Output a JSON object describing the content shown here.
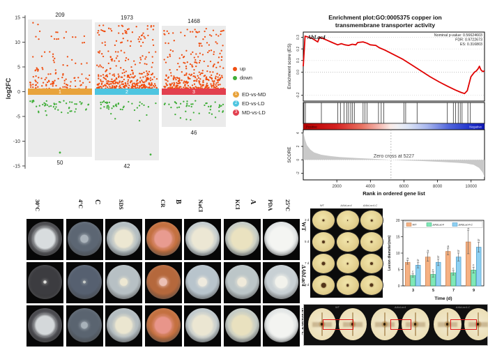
{
  "chart_data": [
    {
      "type": "scatter",
      "ylabel": "log2FC",
      "ylim": [
        -15,
        15
      ],
      "yticks": [
        15,
        10,
        5,
        0,
        -5,
        -10,
        -15
      ],
      "colors": {
        "up": "#f04e11",
        "down": "#3fae38",
        "panel_bg": "#ebebeb"
      },
      "groups": [
        {
          "comparison": "ED-vs-MD",
          "band_num": "1",
          "band_color": "#e8a33c",
          "up": 209,
          "down": 50,
          "outlier": -12.3
        },
        {
          "comparison": "ED-vs-LD",
          "band_num": "2",
          "band_color": "#4ec5e0",
          "up": 1973,
          "down": 42,
          "outlier": -12.7
        },
        {
          "comparison": "MD-vs-LD",
          "band_num": "3",
          "band_color": "#e2404f",
          "up": 1468,
          "down": 46,
          "outlier": null
        }
      ],
      "legend": {
        "up": "up",
        "down": "down",
        "comparisons": [
          {
            "label": "ED-vs-MD",
            "num": "1",
            "color": "#e8a33c"
          },
          {
            "label": "ED-vs-LD",
            "num": "2",
            "color": "#4ec5e0"
          },
          {
            "label": "MD-vs-LD",
            "num": "3",
            "color": "#e2404f"
          }
        ]
      }
    },
    {
      "type": "line",
      "title_line1": "Enrichment plot:GO:0005375 copper ion",
      "title_line2": "transmembrane transporter activity",
      "gene_label": "AbLac4",
      "stats": {
        "nominal_p": "Nominal p-value: 0.56624603",
        "fdr": "FDR: 0.9722673",
        "es": "ES: 0.316803"
      },
      "ylabel": "Enrichment score (ES)",
      "es_ticks": [
        0.3,
        0.2,
        0.1,
        0.0,
        -0.2
      ],
      "score_label": "SCORE",
      "score_ticks": [
        4,
        2,
        0,
        -2
      ],
      "zero_cross_label": "Zero cross at 5227",
      "zero_cross_rank": 5227,
      "max_rank": 10800,
      "xlabel": "Rank in ordered gene list",
      "xticks": [
        2000,
        4000,
        6000,
        8000,
        10000
      ],
      "positive_label": "Positive",
      "negative_label": "Negative",
      "curve_color": "#e00000",
      "curve": [
        [
          0,
          0.05
        ],
        [
          0.01,
          0.31
        ],
        [
          0.05,
          0.29
        ],
        [
          0.08,
          0.26
        ],
        [
          0.09,
          0.3
        ],
        [
          0.1,
          0.295
        ],
        [
          0.13,
          0.275
        ],
        [
          0.16,
          0.255
        ],
        [
          0.19,
          0.235
        ],
        [
          0.21,
          0.245
        ],
        [
          0.23,
          0.235
        ],
        [
          0.25,
          0.23
        ],
        [
          0.27,
          0.24
        ],
        [
          0.29,
          0.235
        ],
        [
          0.3,
          0.255
        ],
        [
          0.33,
          0.26
        ],
        [
          0.35,
          0.25
        ],
        [
          0.37,
          0.235
        ],
        [
          0.4,
          0.23
        ],
        [
          0.42,
          0.21
        ],
        [
          0.45,
          0.19
        ],
        [
          0.5,
          0.15
        ],
        [
          0.55,
          0.11
        ],
        [
          0.6,
          0.06
        ],
        [
          0.65,
          0.01
        ],
        [
          0.7,
          -0.04
        ],
        [
          0.75,
          -0.085
        ],
        [
          0.8,
          -0.125
        ],
        [
          0.84,
          -0.155
        ],
        [
          0.87,
          -0.175
        ],
        [
          0.89,
          -0.185
        ],
        [
          0.905,
          -0.16
        ],
        [
          0.915,
          -0.1
        ],
        [
          0.925,
          -0.04
        ],
        [
          0.935,
          -0.02
        ],
        [
          0.945,
          0
        ],
        [
          0.955,
          0.01
        ],
        [
          0.965,
          0.03
        ],
        [
          0.972,
          0.05
        ],
        [
          0.98,
          0.02
        ],
        [
          0.99,
          0.005
        ],
        [
          1,
          0.01
        ]
      ],
      "hits": [
        0.004,
        0.012,
        0.1,
        0.19,
        0.205,
        0.225,
        0.24,
        0.25,
        0.262,
        0.272,
        0.282,
        0.33,
        0.34,
        0.352,
        0.415,
        0.43,
        0.444,
        0.555,
        0.565,
        0.628,
        0.795,
        0.828,
        0.84,
        0.855,
        0.866,
        0.876,
        0.908,
        0.922
      ],
      "rank_metric": [
        [
          0,
          4.2
        ],
        [
          0.01,
          3
        ],
        [
          0.02,
          2.2
        ],
        [
          0.04,
          1.5
        ],
        [
          0.06,
          1.1
        ],
        [
          0.1,
          0.75
        ],
        [
          0.15,
          0.55
        ],
        [
          0.2,
          0.42
        ],
        [
          0.3,
          0.25
        ],
        [
          0.4,
          0.12
        ],
        [
          0.484,
          0
        ],
        [
          0.55,
          -0.08
        ],
        [
          0.65,
          -0.18
        ],
        [
          0.75,
          -0.3
        ],
        [
          0.85,
          -0.45
        ],
        [
          0.9,
          -0.55
        ],
        [
          0.94,
          -0.75
        ],
        [
          0.97,
          -1.2
        ],
        [
          0.99,
          -1.9
        ],
        [
          1,
          -2.6
        ]
      ]
    },
    {
      "type": "bar",
      "categories": [
        "3",
        "5",
        "7",
        "9"
      ],
      "xlabel": "Time (d)",
      "ylabel": "Lesion diameter(mm)",
      "ylim": [
        0,
        20
      ],
      "yticks": [
        0,
        5,
        10,
        15,
        20
      ],
      "series": [
        {
          "name": "WT",
          "values": [
            7.2,
            8.8,
            10.5,
            13.4
          ],
          "errors": [
            0.6,
            1.3,
            1.0,
            3.6
          ],
          "letters": [
            "a",
            "a",
            "a",
            "a"
          ],
          "color": "#f5b183",
          "border": "#c07848"
        },
        {
          "name": "ΔAbLac4",
          "values": [
            3.2,
            3.5,
            4.0,
            4.8
          ],
          "errors": [
            0.5,
            0.8,
            0.7,
            0.9
          ],
          "letters": [
            "c",
            "c",
            "c",
            "c"
          ],
          "color": "#7fe8b7",
          "border": "#30a870"
        },
        {
          "name": "ΔAbLac4-C",
          "values": [
            6.3,
            7.2,
            8.8,
            11.8
          ],
          "errors": [
            0.8,
            1.0,
            1.2,
            1.5
          ],
          "letters": [
            "b",
            "b",
            "b",
            "b"
          ],
          "color": "#8ed0f2",
          "border": "#4090c0"
        }
      ]
    }
  ],
  "stress": {
    "condition_labels": [
      "30°C",
      "4°C",
      "C",
      "SDS",
      "CR",
      "B",
      "NaCl",
      "KCl",
      "A",
      "PDA",
      "25°C"
    ],
    "panel_letter_indices": [
      2,
      5,
      8
    ],
    "row_labels": [
      "WT",
      "ΔAbLac4",
      "ΔAbLac4-C"
    ],
    "dishes": [
      [
        {
          "p": "#46464a",
          "c": "#d8dcde",
          "s": 0.74
        },
        {
          "p": "#5c6673",
          "c": "#aab3bb",
          "s": 0.3
        },
        {
          "p": "#b4bec2",
          "c": "#ece7d2",
          "s": 0.68
        },
        {
          "p": "#c3703f",
          "c": "#e89b90",
          "s": 0.64
        },
        {
          "p": "#c2cbce",
          "c": "#ece7d4",
          "s": 0.8
        },
        {
          "p": "#c5ccc6",
          "c": "#eae2c0",
          "s": 0.8
        },
        {
          "p": "#dde1e2",
          "c": "#f4f5f2",
          "s": 0.9
        }
      ],
      [
        {
          "p": "#3c3c40",
          "c": "#e0e0dc",
          "s": 0.12
        },
        {
          "p": "#566070",
          "c": "#c8ccc8",
          "s": 0.1
        },
        {
          "p": "#b7c0c4",
          "c": "#ece7d2",
          "s": 0.3
        },
        {
          "p": "#b5683c",
          "c": "#ecc0b4",
          "s": 0.3
        },
        {
          "p": "#b8c4cc",
          "c": "#eeeade",
          "s": 0.34
        },
        {
          "p": "#bcc6c8",
          "c": "#efeada",
          "s": 0.34
        },
        {
          "p": "#c8d0d4",
          "c": "#f2f2ec",
          "s": 0.44
        }
      ],
      [
        {
          "p": "#45454a",
          "c": "#d4d8da",
          "s": 0.7
        },
        {
          "p": "#5a6470",
          "c": "#a8b2ba",
          "s": 0.26
        },
        {
          "p": "#b4bdc1",
          "c": "#ebe6d0",
          "s": 0.64
        },
        {
          "p": "#c3703f",
          "c": "#e8958a",
          "s": 0.62
        },
        {
          "p": "#c0c9cc",
          "c": "#ebe6d2",
          "s": 0.74
        },
        {
          "p": "#c4cbc5",
          "c": "#e9e1bf",
          "s": 0.76
        },
        {
          "p": "#dce0e1",
          "c": "#f3f4f1",
          "s": 0.88
        }
      ]
    ]
  },
  "apples": {
    "col_headers": [
      "WT",
      "ΔAbLac4",
      "ΔAbLac4-C"
    ],
    "row_labels": [
      "3 d",
      "5 d",
      "7 d",
      "9 d"
    ]
  },
  "sections": {
    "labels": [
      "WT",
      "ΔAbLac4",
      "ΔAbLac4-C"
    ]
  }
}
